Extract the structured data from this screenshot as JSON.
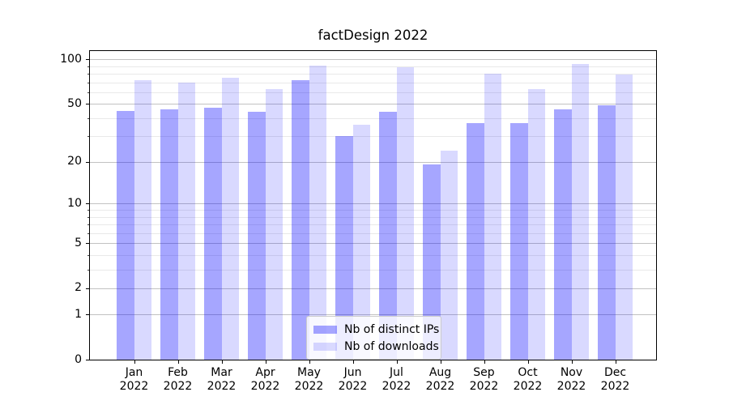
{
  "chart_data": {
    "type": "bar",
    "title": "factDesign 2022",
    "categories": [
      "Jan 2022",
      "Feb 2022",
      "Mar 2022",
      "Apr 2022",
      "May 2022",
      "Jun 2022",
      "Jul 2022",
      "Aug 2022",
      "Sep 2022",
      "Oct 2022",
      "Nov 2022",
      "Dec 2022"
    ],
    "months": [
      "Jan",
      "Feb",
      "Mar",
      "Apr",
      "May",
      "Jun",
      "Jul",
      "Aug",
      "Sep",
      "Oct",
      "Nov",
      "Dec"
    ],
    "year": "2022",
    "series": [
      {
        "name": "Nb of distinct IPs",
        "color": "rgba(0,0,255,0.35)",
        "color_hex_on_white": "#a6a6fa",
        "values": [
          45,
          46,
          47,
          44,
          72,
          30,
          44,
          19,
          37,
          37,
          46,
          49
        ]
      },
      {
        "name": "Nb of downloads",
        "color": "rgba(0,0,255,0.15)",
        "color_hex_on_white": "#d9d9fc",
        "values": [
          72,
          70,
          75,
          63,
          91,
          36,
          89,
          24,
          80,
          63,
          93,
          79
        ]
      }
    ],
    "xlabel": "",
    "ylabel": "",
    "yscale": "log1p",
    "ylim": [
      0,
      114
    ],
    "yticks": [
      0,
      1,
      2,
      5,
      10,
      20,
      50,
      100
    ],
    "yticks_minor": [
      3,
      4,
      6,
      7,
      8,
      9,
      30,
      40,
      60,
      70,
      80,
      90
    ],
    "grid": true,
    "grid_major_color": "#c2c2c2",
    "grid_minor_color": "#e9e9e9",
    "legend": {
      "position": "inside-bottom-center",
      "entries": [
        "Nb of distinct IPs",
        "Nb of downloads"
      ]
    }
  }
}
